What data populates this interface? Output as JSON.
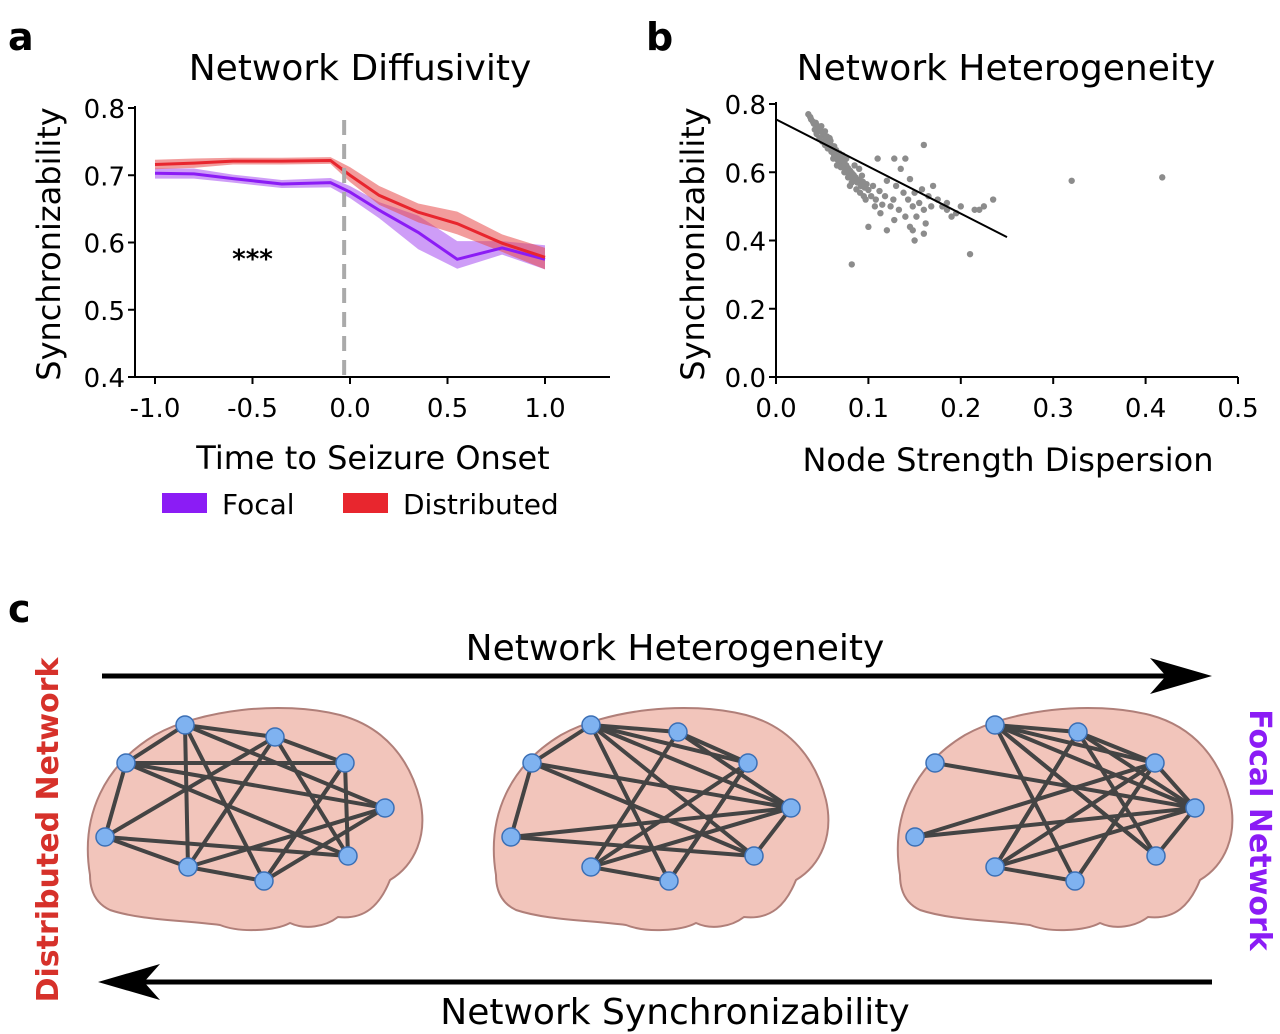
{
  "colors": {
    "focal": "#8b1cf5",
    "focal_band": "#a64cf0",
    "distributed": "#e8262e",
    "distributed_band": "#e84a4a",
    "axis": "#000000",
    "scatter": "#8c8c8c",
    "onset_line": "#aaaaaa",
    "brain_fill": "#f2c5bb",
    "brain_stroke": "#b07f79",
    "node_fill": "#7fb2f0",
    "node_stroke": "#3b6fb5",
    "edge": "#444444",
    "label_distributed": "#d6312a",
    "label_focal": "#8b1cf5"
  },
  "panels": {
    "a": {
      "letter": "a"
    },
    "b": {
      "letter": "b"
    },
    "c": {
      "letter": "c",
      "top_arrow_label": "Network Heterogeneity",
      "bottom_arrow_label": "Network Synchronizability",
      "left_label": "Distributed Network",
      "right_label": "Focal Network"
    }
  },
  "chart_data": [
    {
      "type": "line",
      "title": "Network Diffusivity",
      "xlabel": "Time to Seizure Onset",
      "ylabel": "Synchronizability",
      "xlim": [
        -1.1,
        1.35
      ],
      "ylim": [
        0.4,
        0.8
      ],
      "xticks": [
        "-1.0",
        "-0.5",
        "0.0",
        "0.5",
        "1.0"
      ],
      "xtick_values": [
        -1.0,
        -0.5,
        0.0,
        0.5,
        1.0
      ],
      "yticks": [
        "0.4",
        "0.5",
        "0.6",
        "0.7",
        "0.8"
      ],
      "ytick_values": [
        0.4,
        0.5,
        0.6,
        0.7,
        0.8
      ],
      "annotation": "***",
      "annotation_at": [
        -0.5,
        0.563
      ],
      "onset_marker_x": -0.03,
      "legend_position": "bottom",
      "series": [
        {
          "name": "Focal",
          "x": [
            -1.0,
            -0.8,
            -0.6,
            -0.35,
            -0.1,
            0.0,
            0.15,
            0.35,
            0.55,
            0.78,
            1.0
          ],
          "values": [
            0.703,
            0.702,
            0.695,
            0.687,
            0.689,
            0.675,
            0.648,
            0.615,
            0.575,
            0.592,
            0.575
          ],
          "upper": [
            0.71,
            0.71,
            0.701,
            0.693,
            0.696,
            0.684,
            0.66,
            0.64,
            0.602,
            0.602,
            0.596
          ],
          "lower": [
            0.695,
            0.695,
            0.689,
            0.681,
            0.682,
            0.666,
            0.636,
            0.59,
            0.561,
            0.582,
            0.56
          ]
        },
        {
          "name": "Distributed",
          "x": [
            -1.0,
            -0.8,
            -0.6,
            -0.35,
            -0.1,
            0.0,
            0.15,
            0.35,
            0.55,
            0.78,
            1.0
          ],
          "values": [
            0.716,
            0.718,
            0.721,
            0.721,
            0.722,
            0.7,
            0.67,
            0.645,
            0.628,
            0.599,
            0.578
          ],
          "upper": [
            0.723,
            0.725,
            0.726,
            0.726,
            0.727,
            0.712,
            0.684,
            0.658,
            0.646,
            0.612,
            0.592
          ],
          "lower": [
            0.709,
            0.711,
            0.716,
            0.716,
            0.717,
            0.69,
            0.656,
            0.63,
            0.612,
            0.586,
            0.56
          ]
        }
      ]
    },
    {
      "type": "scatter",
      "title": "Network Heterogeneity",
      "xlabel": "Node Strength Dispersion",
      "ylabel": "Synchronizability",
      "xlim": [
        0.0,
        0.5
      ],
      "ylim": [
        0.0,
        0.8
      ],
      "xticks": [
        "0.0",
        "0.1",
        "0.2",
        "0.3",
        "0.4",
        "0.5"
      ],
      "xtick_values": [
        0.0,
        0.1,
        0.2,
        0.3,
        0.4,
        0.5
      ],
      "yticks": [
        "0.0",
        "0.2",
        "0.4",
        "0.6",
        "0.8"
      ],
      "ytick_values": [
        0.0,
        0.2,
        0.4,
        0.6,
        0.8
      ],
      "fit_line": {
        "x": [
          0.0,
          0.25
        ],
        "y": [
          0.755,
          0.41
        ]
      },
      "points": [
        [
          0.035,
          0.77
        ],
        [
          0.037,
          0.762
        ],
        [
          0.038,
          0.755
        ],
        [
          0.04,
          0.748
        ],
        [
          0.041,
          0.742
        ],
        [
          0.043,
          0.745
        ],
        [
          0.044,
          0.738
        ],
        [
          0.045,
          0.735
        ],
        [
          0.046,
          0.73
        ],
        [
          0.047,
          0.726
        ],
        [
          0.048,
          0.722
        ],
        [
          0.049,
          0.735
        ],
        [
          0.05,
          0.718
        ],
        [
          0.051,
          0.712
        ],
        [
          0.052,
          0.708
        ],
        [
          0.053,
          0.72
        ],
        [
          0.054,
          0.7
        ],
        [
          0.055,
          0.705
        ],
        [
          0.056,
          0.695
        ],
        [
          0.057,
          0.69
        ],
        [
          0.058,
          0.684
        ],
        [
          0.059,
          0.692
        ],
        [
          0.06,
          0.678
        ],
        [
          0.061,
          0.672
        ],
        [
          0.062,
          0.668
        ],
        [
          0.063,
          0.676
        ],
        [
          0.064,
          0.66
        ],
        [
          0.065,
          0.665
        ],
        [
          0.066,
          0.652
        ],
        [
          0.067,
          0.648
        ],
        [
          0.068,
          0.64
        ],
        [
          0.069,
          0.655
        ],
        [
          0.07,
          0.632
        ],
        [
          0.071,
          0.64
        ],
        [
          0.072,
          0.625
        ],
        [
          0.073,
          0.618
        ],
        [
          0.074,
          0.63
        ],
        [
          0.075,
          0.61
        ],
        [
          0.076,
          0.62
        ],
        [
          0.077,
          0.602
        ],
        [
          0.078,
          0.612
        ],
        [
          0.079,
          0.595
        ],
        [
          0.08,
          0.605
        ],
        [
          0.081,
          0.588
        ],
        [
          0.082,
          0.598
        ],
        [
          0.083,
          0.58
        ],
        [
          0.084,
          0.592
        ],
        [
          0.085,
          0.575
        ],
        [
          0.086,
          0.585
        ],
        [
          0.088,
          0.57
        ],
        [
          0.09,
          0.578
        ],
        [
          0.092,
          0.56
        ],
        [
          0.094,
          0.572
        ],
        [
          0.096,
          0.555
        ],
        [
          0.098,
          0.565
        ],
        [
          0.1,
          0.548
        ],
        [
          0.042,
          0.725
        ],
        [
          0.044,
          0.712
        ],
        [
          0.047,
          0.7
        ],
        [
          0.05,
          0.69
        ],
        [
          0.053,
          0.68
        ],
        [
          0.056,
          0.67
        ],
        [
          0.06,
          0.66
        ],
        [
          0.063,
          0.65
        ],
        [
          0.067,
          0.635
        ],
        [
          0.07,
          0.615
        ],
        [
          0.074,
          0.6
        ],
        [
          0.078,
          0.585
        ],
        [
          0.082,
          0.57
        ],
        [
          0.087,
          0.55
        ],
        [
          0.091,
          0.54
        ],
        [
          0.095,
          0.53
        ],
        [
          0.105,
          0.56
        ],
        [
          0.108,
          0.52
        ],
        [
          0.112,
          0.545
        ],
        [
          0.115,
          0.505
        ],
        [
          0.118,
          0.53
        ],
        [
          0.12,
          0.575
        ],
        [
          0.124,
          0.5
        ],
        [
          0.127,
          0.52
        ],
        [
          0.13,
          0.56
        ],
        [
          0.133,
          0.49
        ],
        [
          0.135,
          0.61
        ],
        [
          0.138,
          0.54
        ],
        [
          0.14,
          0.47
        ],
        [
          0.143,
          0.52
        ],
        [
          0.145,
          0.58
        ],
        [
          0.148,
          0.5
        ],
        [
          0.15,
          0.54
        ],
        [
          0.152,
          0.47
        ],
        [
          0.155,
          0.51
        ],
        [
          0.158,
          0.55
        ],
        [
          0.16,
          0.49
        ],
        [
          0.162,
          0.45
        ],
        [
          0.165,
          0.53
        ],
        [
          0.168,
          0.5
        ],
        [
          0.17,
          0.56
        ],
        [
          0.175,
          0.52
        ],
        [
          0.18,
          0.5
        ],
        [
          0.185,
          0.49
        ],
        [
          0.19,
          0.47
        ],
        [
          0.195,
          0.48
        ],
        [
          0.2,
          0.5
        ],
        [
          0.16,
          0.68
        ],
        [
          0.14,
          0.64
        ],
        [
          0.128,
          0.64
        ],
        [
          0.11,
          0.64
        ],
        [
          0.09,
          0.61
        ],
        [
          0.085,
          0.62
        ],
        [
          0.145,
          0.44
        ],
        [
          0.12,
          0.43
        ],
        [
          0.1,
          0.44
        ],
        [
          0.16,
          0.42
        ],
        [
          0.148,
          0.43
        ],
        [
          0.185,
          0.51
        ],
        [
          0.215,
          0.49
        ],
        [
          0.225,
          0.5
        ],
        [
          0.235,
          0.52
        ],
        [
          0.22,
          0.49
        ],
        [
          0.21,
          0.36
        ],
        [
          0.082,
          0.33
        ],
        [
          0.15,
          0.4
        ],
        [
          0.128,
          0.46
        ],
        [
          0.32,
          0.575
        ],
        [
          0.418,
          0.585
        ],
        [
          0.066,
          0.62
        ],
        [
          0.072,
          0.65
        ],
        [
          0.058,
          0.7
        ],
        [
          0.055,
          0.68
        ],
        [
          0.062,
          0.64
        ],
        [
          0.076,
          0.64
        ],
        [
          0.08,
          0.56
        ],
        [
          0.093,
          0.59
        ],
        [
          0.097,
          0.52
        ],
        [
          0.103,
          0.53
        ],
        [
          0.107,
          0.5
        ],
        [
          0.113,
          0.48
        ]
      ]
    }
  ]
}
